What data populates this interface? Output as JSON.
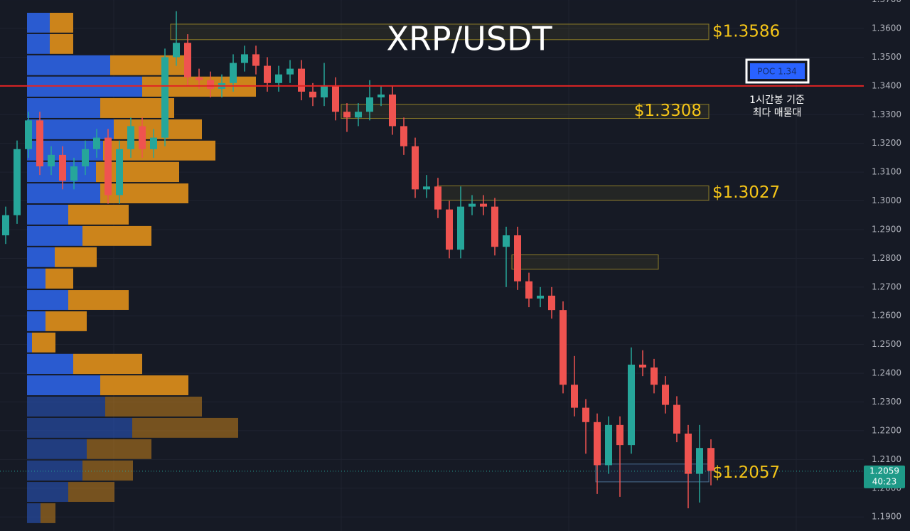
{
  "chart_data": {
    "type": "candlestick",
    "title": "XRP/USDT",
    "ylim": [
      1.1851,
      1.3699
    ],
    "yticks": [
      {
        "value": 1.19,
        "label": "1.1900"
      },
      {
        "value": 1.2,
        "label": "1.2000"
      },
      {
        "value": 1.21,
        "label": "1.2100"
      },
      {
        "value": 1.22,
        "label": "1.2200"
      },
      {
        "value": 1.23,
        "label": "1.2300"
      },
      {
        "value": 1.24,
        "label": "1.2400"
      },
      {
        "value": 1.25,
        "label": "1.2500"
      },
      {
        "value": 1.26,
        "label": "1.2600"
      },
      {
        "value": 1.27,
        "label": "1.2700"
      },
      {
        "value": 1.28,
        "label": "1.2800"
      },
      {
        "value": 1.29,
        "label": "1.2900"
      },
      {
        "value": 1.3,
        "label": "1.3000"
      },
      {
        "value": 1.31,
        "label": "1.3100"
      },
      {
        "value": 1.32,
        "label": "1.3200"
      },
      {
        "value": 1.33,
        "label": "1.3300"
      },
      {
        "value": 1.34,
        "label": "1.3400"
      },
      {
        "value": 1.35,
        "label": "1.3500"
      },
      {
        "value": 1.36,
        "label": "1.3600"
      },
      {
        "value": 1.37,
        "label": "1.3700"
      }
    ],
    "grid": true,
    "up_color": "#26a69a",
    "down_color": "#ef5350",
    "open": [
      1.288,
      1.295,
      1.318,
      1.328,
      1.312,
      1.316,
      1.307,
      1.312,
      1.318,
      1.322,
      1.302,
      1.318,
      1.326,
      1.318,
      1.322,
      1.35,
      1.355,
      1.343,
      1.342,
      1.339,
      1.341,
      1.348,
      1.351,
      1.347,
      1.341,
      1.344,
      1.346,
      1.338,
      1.336,
      1.34,
      1.331,
      1.329,
      1.331,
      1.336,
      1.337,
      1.326,
      1.319,
      1.304,
      1.305,
      1.297,
      1.283,
      1.298,
      1.299,
      1.298,
      1.284,
      1.288,
      1.272,
      1.266,
      1.267,
      1.262,
      1.236,
      1.228,
      1.223,
      1.208,
      1.222,
      1.215,
      1.243,
      1.242,
      1.236,
      1.229,
      1.219,
      1.205,
      1.214
    ],
    "high": [
      1.298,
      1.321,
      1.331,
      1.331,
      1.319,
      1.319,
      1.315,
      1.321,
      1.325,
      1.325,
      1.321,
      1.329,
      1.329,
      1.325,
      1.353,
      1.366,
      1.358,
      1.346,
      1.345,
      1.344,
      1.351,
      1.354,
      1.354,
      1.35,
      1.347,
      1.349,
      1.349,
      1.341,
      1.348,
      1.343,
      1.334,
      1.334,
      1.342,
      1.34,
      1.34,
      1.329,
      1.322,
      1.309,
      1.308,
      1.3,
      1.305,
      1.302,
      1.302,
      1.301,
      1.291,
      1.291,
      1.275,
      1.27,
      1.27,
      1.265,
      1.246,
      1.231,
      1.226,
      1.225,
      1.225,
      1.249,
      1.248,
      1.245,
      1.239,
      1.232,
      1.222,
      1.222,
      1.217
    ],
    "low": [
      1.285,
      1.292,
      1.315,
      1.309,
      1.309,
      1.304,
      1.304,
      1.309,
      1.315,
      1.299,
      1.299,
      1.315,
      1.315,
      1.315,
      1.319,
      1.347,
      1.34,
      1.339,
      1.336,
      1.336,
      1.338,
      1.345,
      1.344,
      1.338,
      1.338,
      1.341,
      1.335,
      1.333,
      1.333,
      1.328,
      1.324,
      1.326,
      1.328,
      1.333,
      1.323,
      1.316,
      1.301,
      1.301,
      1.294,
      1.28,
      1.28,
      1.295,
      1.295,
      1.281,
      1.27,
      1.269,
      1.263,
      1.263,
      1.259,
      1.233,
      1.225,
      1.212,
      1.198,
      1.205,
      1.197,
      1.212,
      1.239,
      1.233,
      1.226,
      1.216,
      1.193,
      1.195,
      1.201
    ],
    "close": [
      1.295,
      1.318,
      1.328,
      1.312,
      1.316,
      1.307,
      1.312,
      1.318,
      1.322,
      1.302,
      1.318,
      1.326,
      1.318,
      1.322,
      1.35,
      1.355,
      1.343,
      1.342,
      1.339,
      1.341,
      1.348,
      1.351,
      1.347,
      1.341,
      1.344,
      1.346,
      1.338,
      1.336,
      1.34,
      1.331,
      1.329,
      1.331,
      1.336,
      1.337,
      1.326,
      1.319,
      1.304,
      1.305,
      1.297,
      1.283,
      1.298,
      1.299,
      1.298,
      1.284,
      1.288,
      1.272,
      1.266,
      1.267,
      1.262,
      1.236,
      1.228,
      1.223,
      1.208,
      1.222,
      1.215,
      1.243,
      1.242,
      1.236,
      1.229,
      1.219,
      1.205,
      1.214,
      1.206
    ],
    "volume_profile": {
      "buy_color": "#2b5fd9",
      "sell_color": "#d68a1a",
      "price_bins": [
        1.3657,
        1.3583,
        1.3509,
        1.3435,
        1.336,
        1.3286,
        1.3212,
        1.3138,
        1.3063,
        1.2989,
        1.2915,
        1.2841,
        1.2767,
        1.2692,
        1.2618,
        1.2544,
        1.247,
        1.2395,
        1.2321,
        1.2247,
        1.2173,
        1.2099,
        1.2024,
        1.195,
        1.1876
      ],
      "buy": [
        32,
        32,
        117,
        162,
        103,
        122,
        107,
        97,
        103,
        58,
        78,
        39,
        26,
        58,
        26,
        7,
        65,
        103,
        110,
        148,
        84,
        78,
        58,
        19
      ],
      "sell": [
        33,
        33,
        110,
        160,
        104,
        124,
        158,
        117,
        124,
        85,
        97,
        59,
        39,
        85,
        58,
        33,
        97,
        124,
        136,
        149,
        91,
        71,
        65,
        21
      ]
    },
    "zones": [
      {
        "top": 1.3615,
        "bottom": 1.3561,
        "label": "$1.3586"
      },
      {
        "top": 1.3336,
        "bottom": 1.3287,
        "label": "$1.3308"
      },
      {
        "top": 1.3052,
        "bottom": 1.3002,
        "label": "$1.3027"
      },
      {
        "top": 1.2812,
        "bottom": 1.2762
      },
      {
        "top": 1.2084,
        "bottom": 1.2022,
        "label": "$1.2057"
      }
    ],
    "poc": {
      "value": 1.34,
      "label": "POC  1.34",
      "note": [
        "1시간봉 기준",
        "최다 매물대"
      ]
    },
    "last_price": {
      "value": 1.2059,
      "label": "1.2059",
      "countdown": "40:23"
    }
  }
}
